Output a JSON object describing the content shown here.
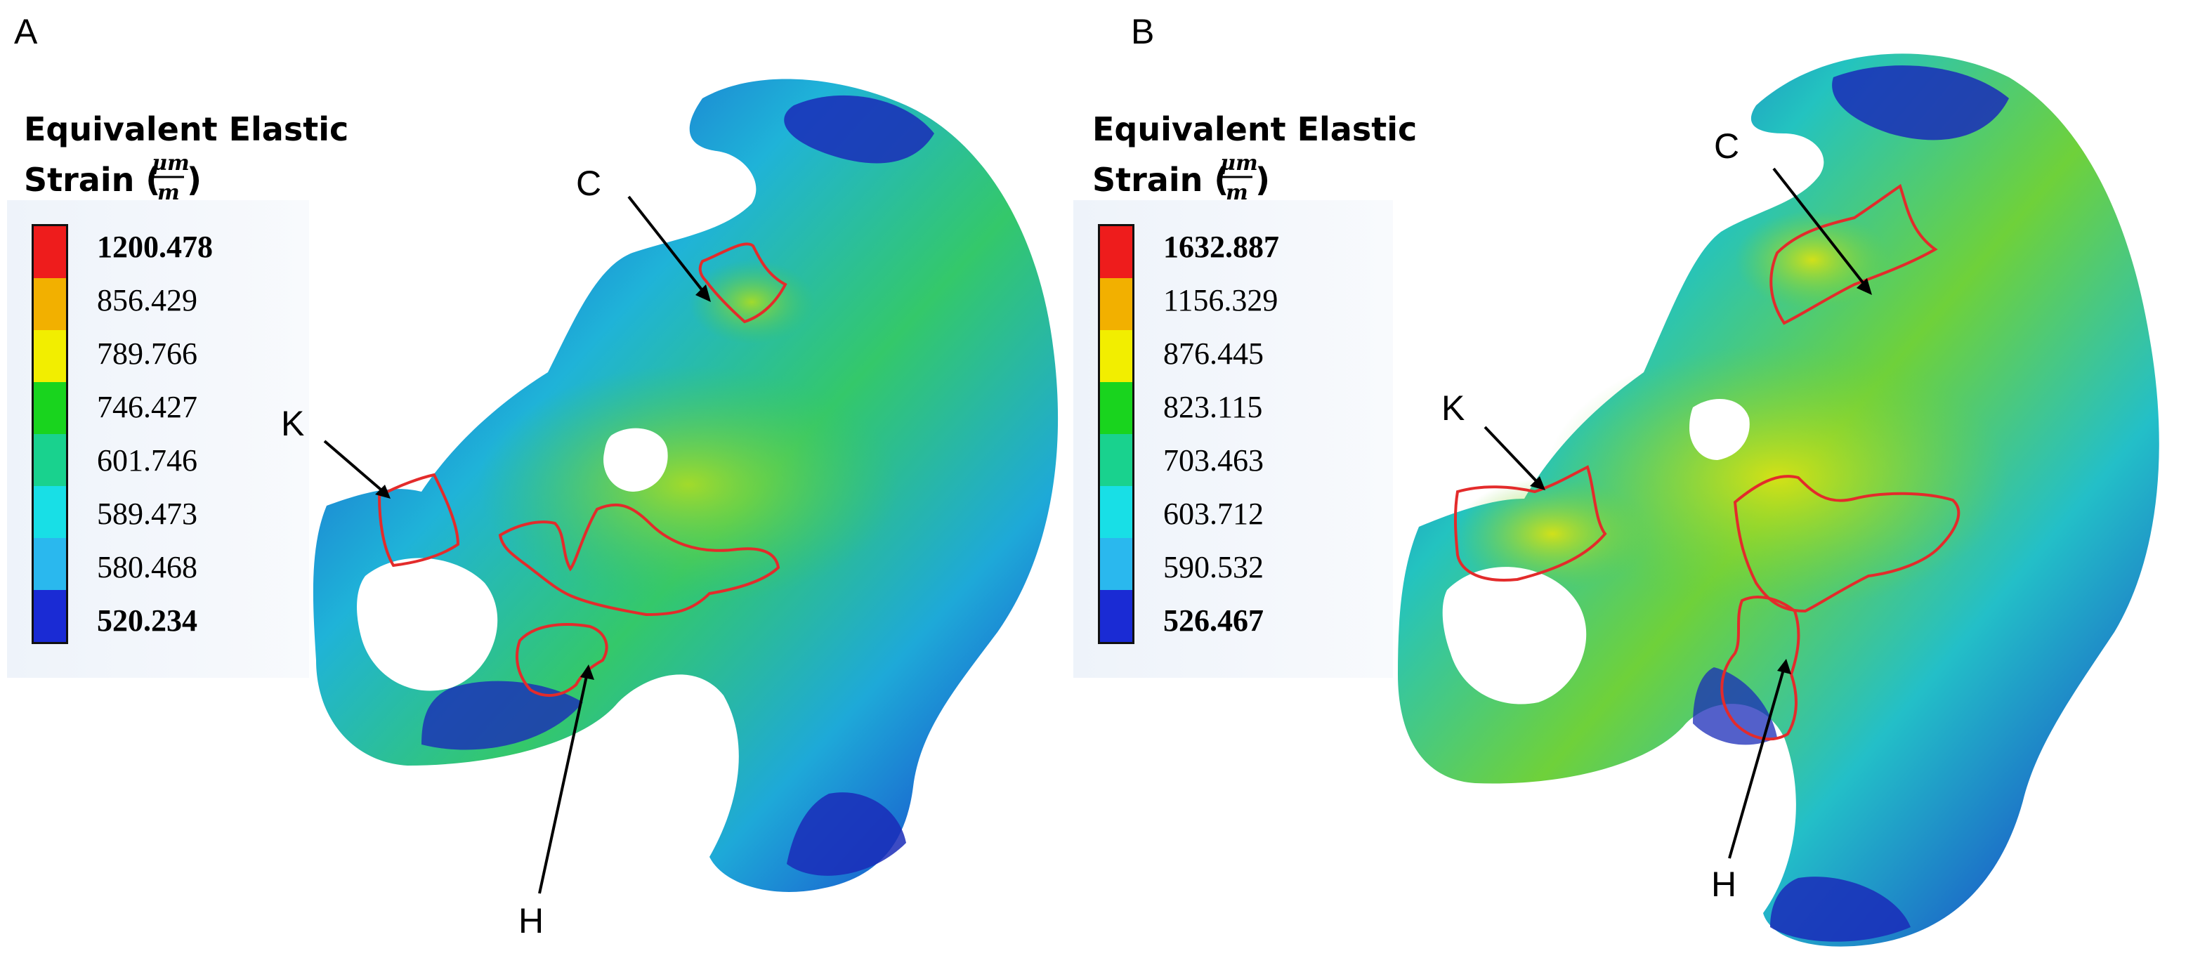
{
  "panels": [
    {
      "label": "A",
      "legend": {
        "title_line1": "Equivalent Elastic",
        "title_line2_prefix": "Strain (",
        "unit_numerator": "μm",
        "unit_denominator": "m",
        "title_line2_suffix": ")",
        "values": [
          "1200.478",
          "856.429",
          "789.766",
          "746.427",
          "601.746",
          "589.473",
          "580.468",
          "520.234"
        ],
        "colors": [
          "#ee1c1c",
          "#f2b000",
          "#f2ee00",
          "#19d41e",
          "#19d28e",
          "#18dfe6",
          "#2ab8ee",
          "#1a2bd4"
        ]
      },
      "callouts": [
        "C",
        "K",
        "H"
      ]
    },
    {
      "label": "B",
      "legend": {
        "title_line1": "Equivalent Elastic",
        "title_line2_prefix": "Strain (",
        "unit_numerator": "μm",
        "unit_denominator": "m",
        "title_line2_suffix": ")",
        "values": [
          "1632.887",
          "1156.329",
          "876.445",
          "823.115",
          "703.463",
          "603.712",
          "590.532",
          "526.467"
        ],
        "colors": [
          "#ee1c1c",
          "#f2b000",
          "#f2ee00",
          "#19d41e",
          "#19d28e",
          "#18dfe6",
          "#2ab8ee",
          "#1a2bd4"
        ]
      },
      "callouts": [
        "C",
        "K",
        "H"
      ]
    }
  ]
}
